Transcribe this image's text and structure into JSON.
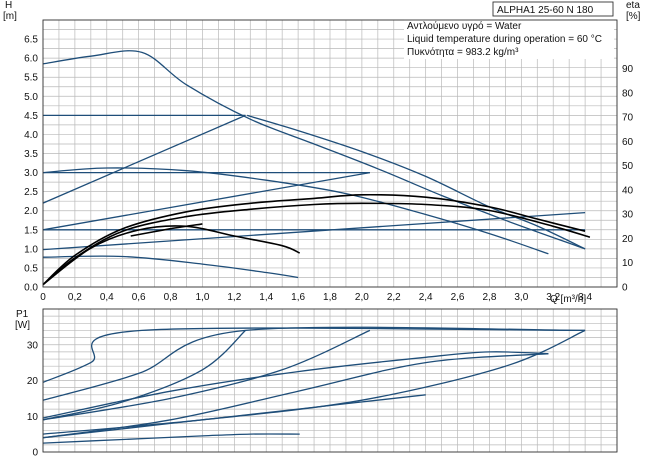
{
  "header": {
    "title": "ALPHA1 25-60 N 180",
    "info_lines": [
      "Αντλούμενο υγρό = Water",
      "Liquid temperature during operation = 60 °C",
      "Πυκνότητα = 983.2 kg/m³"
    ]
  },
  "colors": {
    "curve": "#1f4e79",
    "eta": "#000000",
    "grid": "#b9b9b9"
  },
  "chart_data": [
    {
      "type": "line",
      "title": "",
      "y_label_lines": [
        "H",
        "[m]"
      ],
      "y2_label_lines": [
        "eta",
        "[%]"
      ],
      "xlabel": "Q [m³/h]",
      "xlim": [
        0,
        3.6
      ],
      "ylim": [
        0,
        7.0
      ],
      "y2lim": [
        0,
        110
      ],
      "x_ticks": [
        "0",
        "0,2",
        "0,4",
        "0,6",
        "0,8",
        "1,0",
        "1,2",
        "1,4",
        "1,6",
        "1,8",
        "2,0",
        "2,2",
        "2,4",
        "2,6",
        "2,8",
        "3,0",
        "3,2",
        "3,4"
      ],
      "y_ticks": [
        "0.0",
        "0.5",
        "1.0",
        "1.5",
        "2.0",
        "2.5",
        "3.0",
        "3.5",
        "4.0",
        "4.5",
        "5.0",
        "5.5",
        "6.0",
        "6.5"
      ],
      "y2_ticks": [
        "0",
        "10",
        "20",
        "30",
        "40",
        "50",
        "60",
        "70",
        "80",
        "90"
      ],
      "grid": true,
      "series": [
        {
          "kind": "head",
          "x": [
            0,
            0.3,
            0.62,
            0.9,
            1.3,
            1.7,
            2.1,
            2.5,
            2.9,
            3.4
          ],
          "y": [
            5.85,
            6.05,
            6.15,
            5.3,
            4.4,
            3.75,
            3.1,
            2.4,
            1.75,
            1.0
          ]
        },
        {
          "kind": "head",
          "x": [
            0,
            1.27
          ],
          "y": [
            4.5,
            4.5
          ]
        },
        {
          "kind": "head",
          "x": [
            0,
            1.27
          ],
          "y": [
            2.2,
            4.5
          ]
        },
        {
          "kind": "head",
          "x": [
            0,
            2.05
          ],
          "y": [
            3.0,
            3.0
          ]
        },
        {
          "kind": "head",
          "x": [
            0,
            2.05
          ],
          "y": [
            1.5,
            3.0
          ]
        },
        {
          "kind": "head",
          "x": [
            0,
            3.4
          ],
          "y": [
            1.5,
            1.5
          ]
        },
        {
          "kind": "head",
          "x": [
            0,
            3.4
          ],
          "y": [
            0.98,
            1.95
          ]
        },
        {
          "kind": "head",
          "x": [
            0,
            0.4,
            0.9,
            1.4,
            1.9,
            2.4,
            2.8,
            3.17
          ],
          "y": [
            3.0,
            3.12,
            3.05,
            2.8,
            2.45,
            1.9,
            1.4,
            0.87
          ]
        },
        {
          "kind": "head",
          "x": [
            0,
            0.5,
            1.0,
            1.4,
            1.6
          ],
          "y": [
            0.78,
            0.8,
            0.6,
            0.38,
            0.25
          ]
        },
        {
          "kind": "head",
          "x": [
            1.28,
            1.6,
            2.0,
            2.4,
            2.8,
            3.1,
            3.4
          ],
          "y": [
            4.5,
            4.1,
            3.55,
            2.9,
            2.1,
            1.6,
            1.0
          ]
        },
        {
          "kind": "eta",
          "x": [
            0,
            0.2,
            0.5,
            0.9,
            1.3,
            1.7,
            2.0,
            2.4,
            2.8,
            3.1,
            3.4
          ],
          "y": [
            1,
            13,
            24,
            31,
            34.5,
            36.5,
            38,
            37,
            33,
            28,
            23
          ]
        },
        {
          "kind": "eta",
          "x": [
            0,
            0.3,
            0.6,
            0.9,
            1.2,
            1.5,
            1.61
          ],
          "y": [
            1,
            16,
            23.5,
            25,
            21,
            17,
            14
          ]
        },
        {
          "kind": "eta",
          "x": [
            0,
            0.2,
            0.5,
            0.9,
            1.3,
            1.7,
            2.0,
            2.4,
            2.8,
            3.2,
            3.43
          ],
          "y": [
            1,
            12,
            23,
            29,
            32,
            34,
            34.5,
            34,
            31.5,
            25,
            20.5
          ]
        },
        {
          "kind": "eta",
          "x": [
            0.55,
            0.8,
            1.0
          ],
          "y": [
            21,
            24,
            26
          ]
        }
      ]
    },
    {
      "type": "line",
      "title": "",
      "y_label_lines": [
        "P1",
        "[W]"
      ],
      "xlim": [
        0,
        3.6
      ],
      "ylim": [
        0,
        40
      ],
      "y_ticks": [
        "0",
        "10",
        "20",
        "30"
      ],
      "grid": true,
      "series": [
        {
          "x": [
            0,
            0.3,
            0.62,
            3.4
          ],
          "y": [
            19.5,
            25,
            34,
            34
          ]
        },
        {
          "x": [
            0,
            0.6,
            1.27,
            3.4
          ],
          "y": [
            14.5,
            22,
            34,
            34
          ]
        },
        {
          "x": [
            0,
            0.5,
            1.0,
            1.27
          ],
          "y": [
            9,
            14,
            23,
            34
          ]
        },
        {
          "x": [
            0,
            0.8,
            1.5,
            2.05
          ],
          "y": [
            9,
            15,
            23,
            34
          ]
        },
        {
          "x": [
            0,
            1.0,
            2.0,
            2.9,
            3.4
          ],
          "y": [
            5,
            9,
            14.5,
            24,
            34
          ]
        },
        {
          "x": [
            0,
            0.8,
            1.6,
            2.4,
            3.17
          ],
          "y": [
            4,
            9,
            17,
            25,
            27.5
          ]
        },
        {
          "x": [
            0,
            0.8,
            1.6,
            2.4,
            2.8,
            3.17
          ],
          "y": [
            9.5,
            17,
            22.5,
            26.5,
            28,
            27.5
          ]
        },
        {
          "x": [
            0,
            0.5,
            1.0,
            1.3,
            1.61
          ],
          "y": [
            2.5,
            3.5,
            4.5,
            5,
            5
          ]
        },
        {
          "x": [
            0,
            0.8,
            1.6,
            2.4
          ],
          "y": [
            4,
            8,
            12,
            16
          ]
        }
      ]
    }
  ]
}
